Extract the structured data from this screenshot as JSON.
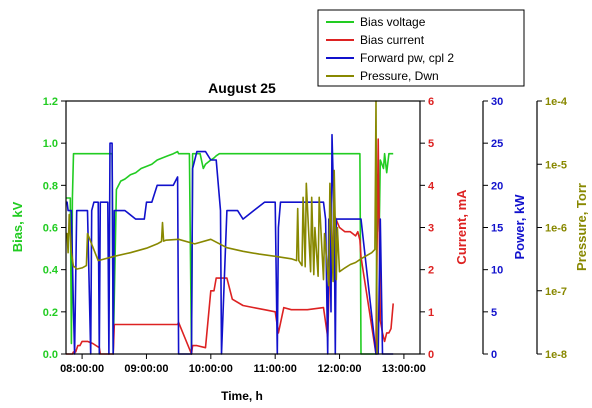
{
  "chart_data": {
    "type": "line",
    "title": "August 25",
    "xlabel": "Time, h",
    "x_ticks": [
      "08:00:00",
      "09:00:00",
      "10:00:00",
      "11:00:00",
      "12:00:00",
      "13:00:00"
    ],
    "x_range": [
      "07:45:00",
      "13:15:00"
    ],
    "grid": false,
    "legend_position": "top-right",
    "axes": [
      {
        "id": "bias",
        "label": "Bias, kV",
        "side": "left",
        "range": [
          0,
          1.2
        ],
        "ticks": [
          "0.0",
          "0.2",
          "0.4",
          "0.6",
          "0.8",
          "1.0",
          "1.2"
        ],
        "color": "#22cc22"
      },
      {
        "id": "current",
        "label": "Current, mA",
        "side": "right",
        "range": [
          0,
          6
        ],
        "ticks": [
          "0",
          "1",
          "2",
          "3",
          "4",
          "5",
          "6"
        ],
        "color": "#dd2222"
      },
      {
        "id": "power",
        "label": "Power, kW",
        "side": "right",
        "range": [
          0,
          30
        ],
        "ticks": [
          "0",
          "5",
          "10",
          "15",
          "20",
          "25",
          "30"
        ],
        "color": "#1111cc"
      },
      {
        "id": "pressure",
        "label": "Pressure, Torr",
        "side": "right",
        "scale": "log",
        "range": [
          1e-08,
          0.0001
        ],
        "ticks": [
          "1e-8",
          "1e-7",
          "1e-6",
          "1e-5",
          "1e-4"
        ],
        "color": "#888800"
      }
    ],
    "series": [
      {
        "name": "Bias voltage",
        "axis": "bias",
        "color": "#22cc22",
        "x": [
          "07:45:00",
          "07:49:00",
          "07:50:00",
          "07:51:00",
          "07:52:00",
          "07:53:00",
          "07:54:00",
          "07:55:00",
          "08:00:00",
          "08:10:00",
          "08:20:00",
          "08:28:00",
          "08:29:00",
          "08:32:00",
          "08:36:00",
          "08:40:00",
          "08:45:00",
          "08:50:00",
          "08:55:00",
          "09:00:00",
          "09:05:00",
          "09:10:00",
          "09:15:00",
          "09:20:00",
          "09:25:00",
          "09:29:00",
          "09:30:00",
          "09:40:00",
          "09:42:00",
          "09:43:00",
          "09:44:00",
          "09:45:00",
          "09:46:00",
          "09:47:00",
          "09:48:00",
          "09:50:00",
          "09:53:00",
          "09:55:00",
          "10:00:00",
          "10:03:00",
          "10:05:00",
          "10:08:00",
          "10:15:00",
          "10:30:00",
          "11:00:00",
          "11:30:00",
          "12:00:00",
          "12:19:00",
          "12:20:00",
          "12:25:00",
          "12:34:00",
          "12:35:00",
          "12:37:00",
          "12:38:00",
          "12:41:00",
          "12:42:00",
          "12:44:00",
          "12:46:00",
          "12:49:00",
          "12:50:00"
        ],
        "y": [
          0.74,
          0.74,
          0.05,
          0.74,
          0.95,
          0.95,
          0.95,
          0.95,
          0.95,
          0.95,
          0.95,
          0.95,
          0,
          0.78,
          0.82,
          0.83,
          0.85,
          0.86,
          0.88,
          0.89,
          0.9,
          0.92,
          0.93,
          0.94,
          0.95,
          0.96,
          0.95,
          0.95,
          0,
          0.95,
          0.95,
          0.95,
          0.95,
          0.95,
          0.95,
          0.95,
          0.88,
          0.9,
          0.92,
          0.93,
          0.94,
          0.95,
          0.95,
          0.95,
          0.95,
          0.95,
          0.95,
          0.95,
          0,
          0,
          0,
          0.85,
          0.58,
          0.92,
          0.88,
          0.95,
          0.86,
          0.95,
          0.95,
          0.95
        ]
      },
      {
        "name": "Bias current",
        "axis": "current",
        "color": "#dd2222",
        "x": [
          "07:45:00",
          "07:49:00",
          "07:50:00",
          "07:51:00",
          "07:52:00",
          "07:54:00",
          "07:56:00",
          "07:58:00",
          "08:00:00",
          "08:05:00",
          "08:10:00",
          "08:16:00",
          "08:17:00",
          "08:22:00",
          "08:28:00",
          "08:29:00",
          "08:30:00",
          "08:45:00",
          "09:00:00",
          "09:15:00",
          "09:29:00",
          "09:30:00",
          "09:42:00",
          "09:43:00",
          "09:47:00",
          "09:55:00",
          "10:00:00",
          "10:03:00",
          "10:05:00",
          "10:06:00",
          "10:15:00",
          "10:20:00",
          "10:30:00",
          "10:40:00",
          "10:50:00",
          "11:00:00",
          "11:03:00",
          "11:08:00",
          "11:15:00",
          "11:30:00",
          "11:45:00",
          "11:49:00",
          "11:51:00",
          "11:53:00",
          "11:55:00",
          "12:00:00",
          "12:05:00",
          "12:10:00",
          "12:15:00",
          "12:17:00",
          "12:19:00",
          "12:20:00",
          "12:34:00",
          "12:36:00",
          "12:38:00",
          "12:40:00",
          "12:42:00",
          "12:44:00",
          "12:46:00",
          "12:48:00",
          "12:50:00"
        ],
        "y": [
          0,
          0,
          0,
          0,
          0.05,
          0.05,
          0.2,
          0.2,
          0.3,
          0.3,
          0.25,
          0.15,
          0,
          0,
          0,
          0,
          0.7,
          0.7,
          0.7,
          0.7,
          0.7,
          0.75,
          0,
          0.2,
          0.2,
          0.15,
          1.5,
          1.5,
          1.8,
          1.8,
          1.8,
          1.3,
          1.15,
          1.1,
          1.05,
          1.0,
          0.5,
          1.1,
          1.05,
          1.05,
          1.1,
          0.4,
          2.3,
          2.0,
          3.3,
          3.0,
          2.9,
          2.9,
          2.8,
          2.9,
          2.7,
          2.3,
          0,
          5.1,
          0.8,
          0.5,
          0.3,
          0.5,
          0.5,
          0.6,
          1.2
        ]
      },
      {
        "name": "Forward pw, cpl 2",
        "axis": "power",
        "color": "#1111cc",
        "x": [
          "07:45:00",
          "07:46:00",
          "07:47:00",
          "07:50:00",
          "07:52:00",
          "07:53:00",
          "07:55:00",
          "08:00:00",
          "08:05:00",
          "08:08:00",
          "08:09:00",
          "08:11:00",
          "08:13:00",
          "08:15:00",
          "08:16:00",
          "08:17:00",
          "08:18:00",
          "08:22:00",
          "08:24:00",
          "08:25:00",
          "08:26:00",
          "08:28:00",
          "08:29:00",
          "08:30:00",
          "08:35:00",
          "08:40:00",
          "08:50:00",
          "08:58:00",
          "09:00:00",
          "09:05:00",
          "09:10:00",
          "09:15:00",
          "09:25:00",
          "09:29:00",
          "09:30:00",
          "09:42:00",
          "09:43:00",
          "09:47:00",
          "09:55:00",
          "10:00:00",
          "10:05:00",
          "10:09:00",
          "10:10:00",
          "10:15:00",
          "10:25:00",
          "10:30:00",
          "10:40:00",
          "10:50:00",
          "11:00:00",
          "11:02:00",
          "11:03:00",
          "11:05:00",
          "11:15:00",
          "11:30:00",
          "11:45:00",
          "11:47:00",
          "11:49:00",
          "11:50:00",
          "11:51:00",
          "11:52:00",
          "11:53:00",
          "11:55:00",
          "11:56:00",
          "11:57:00",
          "12:00:00",
          "12:15:00",
          "12:20:00",
          "12:34:00",
          "12:36:00",
          "12:37:00",
          "12:38:00",
          "12:40:00",
          "12:50:00"
        ],
        "y": [
          18,
          18,
          17,
          17,
          5,
          0,
          17,
          17,
          17,
          0,
          17,
          18,
          18,
          18,
          0,
          18,
          18,
          18,
          18,
          0,
          25,
          25,
          0,
          17,
          17,
          17,
          16,
          16,
          18,
          18,
          20,
          20,
          20,
          21,
          0,
          0,
          22,
          24,
          24,
          23,
          23,
          17,
          0,
          17,
          17,
          16,
          17,
          18,
          18,
          0,
          15,
          18,
          18,
          18,
          18,
          16,
          0,
          16,
          16,
          5,
          26,
          16,
          0,
          16,
          16,
          16,
          16,
          0,
          0,
          8,
          16,
          0,
          0
        ]
      },
      {
        "name": "Pressure, Dwn",
        "axis": "pressure",
        "color": "#888800",
        "x": [
          "07:45:00",
          "07:46:00",
          "07:47:00",
          "07:48:00",
          "07:50:00",
          "07:52:00",
          "07:53:00",
          "07:55:00",
          "08:00:00",
          "08:04:00",
          "08:05:00",
          "08:15:00",
          "08:30:00",
          "08:45:00",
          "09:00:00",
          "09:10:00",
          "09:14:00",
          "09:15:00",
          "09:16:00",
          "09:17:00",
          "09:18:00",
          "09:30:00",
          "09:45:00",
          "10:00:00",
          "10:15:00",
          "10:30:00",
          "10:45:00",
          "11:00:00",
          "11:15:00",
          "11:20:00",
          "11:21:00",
          "11:22:00",
          "11:25:00",
          "11:26:00",
          "11:28:00",
          "11:29:00",
          "11:33:00",
          "11:34:00",
          "11:36:00",
          "11:37:00",
          "11:40:00",
          "11:41:00",
          "11:45:00",
          "11:46:00",
          "11:50:00",
          "11:51:00",
          "11:54:00",
          "11:55:00",
          "11:57:00",
          "11:58:00",
          "12:00:00",
          "12:05:00",
          "12:10:00",
          "12:15:00",
          "12:20:00",
          "12:30:00",
          "12:33:00",
          "12:34:00",
          "12:35:00"
        ],
        "y": [
          8e-07,
          8e-07,
          4e-07,
          1.6e-06,
          4e-07,
          2.4e-07,
          2.4e-07,
          2.2e-07,
          2.3e-07,
          2.5e-07,
          8e-07,
          3e-07,
          3.5e-07,
          4e-07,
          4.7e-07,
          5.5e-07,
          6e-07,
          1.2e-06,
          6.1e-07,
          6.2e-07,
          6.3e-07,
          6.5e-07,
          5.5e-07,
          6.5e-07,
          4.8e-07,
          4.2e-07,
          3.8e-07,
          3.5e-07,
          3.2e-07,
          3e-07,
          2e-06,
          3e-07,
          2.5e-07,
          3e-06,
          2.4e-07,
          5e-06,
          2e-07,
          3e-06,
          1.8e-07,
          1e-06,
          1.7e-07,
          3e-06,
          1.5e-07,
          8e-07,
          1.2e-07,
          5e-06,
          1.4e-07,
          8e-06,
          1.5e-07,
          1e-06,
          2e-07,
          2.3e-07,
          2.6e-07,
          2.8e-07,
          3.2e-07,
          4e-07,
          4.5e-07,
          0.0001,
          1e-08
        ]
      }
    ]
  }
}
